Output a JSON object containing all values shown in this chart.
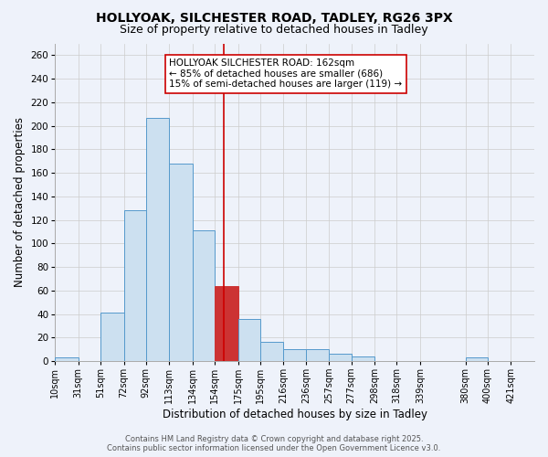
{
  "title": "HOLLYOAK, SILCHESTER ROAD, TADLEY, RG26 3PX",
  "subtitle": "Size of property relative to detached houses in Tadley",
  "xlabel": "Distribution of detached houses by size in Tadley",
  "ylabel": "Number of detached properties",
  "bin_labels": [
    "10sqm",
    "31sqm",
    "51sqm",
    "72sqm",
    "92sqm",
    "113sqm",
    "134sqm",
    "154sqm",
    "175sqm",
    "195sqm",
    "216sqm",
    "236sqm",
    "257sqm",
    "277sqm",
    "298sqm",
    "318sqm",
    "339sqm",
    "380sqm",
    "400sqm",
    "421sqm"
  ],
  "bin_edges": [
    10,
    31,
    51,
    72,
    92,
    113,
    134,
    154,
    175,
    195,
    216,
    236,
    257,
    277,
    298,
    318,
    339,
    380,
    400,
    421,
    442
  ],
  "bin_counts": [
    3,
    0,
    41,
    128,
    207,
    168,
    111,
    64,
    36,
    16,
    10,
    10,
    6,
    4,
    0,
    0,
    0,
    3,
    0,
    0
  ],
  "bar_facecolor": "#cce0f0",
  "bar_edgecolor": "#5599cc",
  "highlight_bin_index": 7,
  "highlight_facecolor": "#cc3333",
  "highlight_edgecolor": "#cc3333",
  "vline_x": 162,
  "vline_color": "#cc0000",
  "annotation_line1": "HOLLYOAK SILCHESTER ROAD: 162sqm",
  "annotation_line2": "← 85% of detached houses are smaller (686)",
  "annotation_line3": "15% of semi-detached houses are larger (119) →",
  "annotation_box_edgecolor": "#cc0000",
  "annotation_box_facecolor": "#ffffff",
  "ylim": [
    0,
    270
  ],
  "yticks": [
    0,
    20,
    40,
    60,
    80,
    100,
    120,
    140,
    160,
    180,
    200,
    220,
    240,
    260
  ],
  "grid_color": "#cccccc",
  "background_color": "#eef2fa",
  "footer_text": "Contains HM Land Registry data © Crown copyright and database right 2025.\nContains public sector information licensed under the Open Government Licence v3.0.",
  "title_fontsize": 10,
  "subtitle_fontsize": 9,
  "axis_label_fontsize": 8.5,
  "tick_label_fontsize": 7,
  "annotation_fontsize": 7.5,
  "footer_fontsize": 6
}
